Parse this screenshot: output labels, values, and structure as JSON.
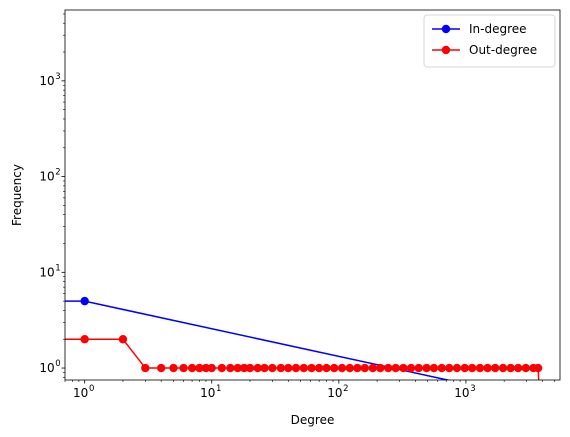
{
  "chart_data": {
    "type": "line",
    "xlabel": "Degree",
    "ylabel": "Frequency",
    "xscale": "log",
    "yscale": "log",
    "xlim": [
      0.7,
      5500
    ],
    "ylim": [
      0.75,
      5500
    ],
    "x_ticks": [
      {
        "base": "10",
        "exp": "0",
        "value": 1
      },
      {
        "base": "10",
        "exp": "1",
        "value": 10
      },
      {
        "base": "10",
        "exp": "2",
        "value": 100
      },
      {
        "base": "10",
        "exp": "3",
        "value": 1000
      }
    ],
    "y_ticks": [
      {
        "base": "10",
        "exp": "0",
        "value": 1
      },
      {
        "base": "10",
        "exp": "1",
        "value": 10
      },
      {
        "base": "10",
        "exp": "2",
        "value": 100
      },
      {
        "base": "10",
        "exp": "3",
        "value": 1000
      }
    ],
    "legend_position": "top-right",
    "series": [
      {
        "name": "In-degree",
        "color": "#0000ff",
        "points": [
          [
            0,
            5
          ],
          [
            1,
            5
          ],
          [
            3800,
            0
          ]
        ]
      },
      {
        "name": "Out-degree",
        "color": "#ff0000",
        "points": [
          [
            0,
            2
          ],
          [
            1,
            2
          ],
          [
            2,
            2
          ],
          [
            3,
            1
          ],
          [
            4,
            1
          ],
          [
            5,
            1
          ],
          [
            6,
            1
          ],
          [
            7,
            1
          ],
          [
            8,
            1
          ],
          [
            9,
            1
          ],
          [
            10,
            1
          ],
          [
            12,
            1
          ],
          [
            14,
            1
          ],
          [
            16,
            1
          ],
          [
            18,
            1
          ],
          [
            20,
            1
          ],
          [
            23,
            1
          ],
          [
            26,
            1
          ],
          [
            30,
            1
          ],
          [
            35,
            1
          ],
          [
            40,
            1
          ],
          [
            46,
            1
          ],
          [
            53,
            1
          ],
          [
            61,
            1
          ],
          [
            70,
            1
          ],
          [
            80,
            1
          ],
          [
            92,
            1
          ],
          [
            106,
            1
          ],
          [
            122,
            1
          ],
          [
            140,
            1
          ],
          [
            160,
            1
          ],
          [
            185,
            1
          ],
          [
            212,
            1
          ],
          [
            245,
            1
          ],
          [
            280,
            1
          ],
          [
            322,
            1
          ],
          [
            370,
            1
          ],
          [
            425,
            1
          ],
          [
            490,
            1
          ],
          [
            560,
            1
          ],
          [
            645,
            1
          ],
          [
            740,
            1
          ],
          [
            850,
            1
          ],
          [
            980,
            1
          ],
          [
            1120,
            1
          ],
          [
            1290,
            1
          ],
          [
            1480,
            1
          ],
          [
            1700,
            1
          ],
          [
            1960,
            1
          ],
          [
            2250,
            1
          ],
          [
            2580,
            1
          ],
          [
            2960,
            1
          ],
          [
            3400,
            1
          ],
          [
            3700,
            1
          ],
          [
            3800,
            0
          ]
        ]
      }
    ]
  }
}
